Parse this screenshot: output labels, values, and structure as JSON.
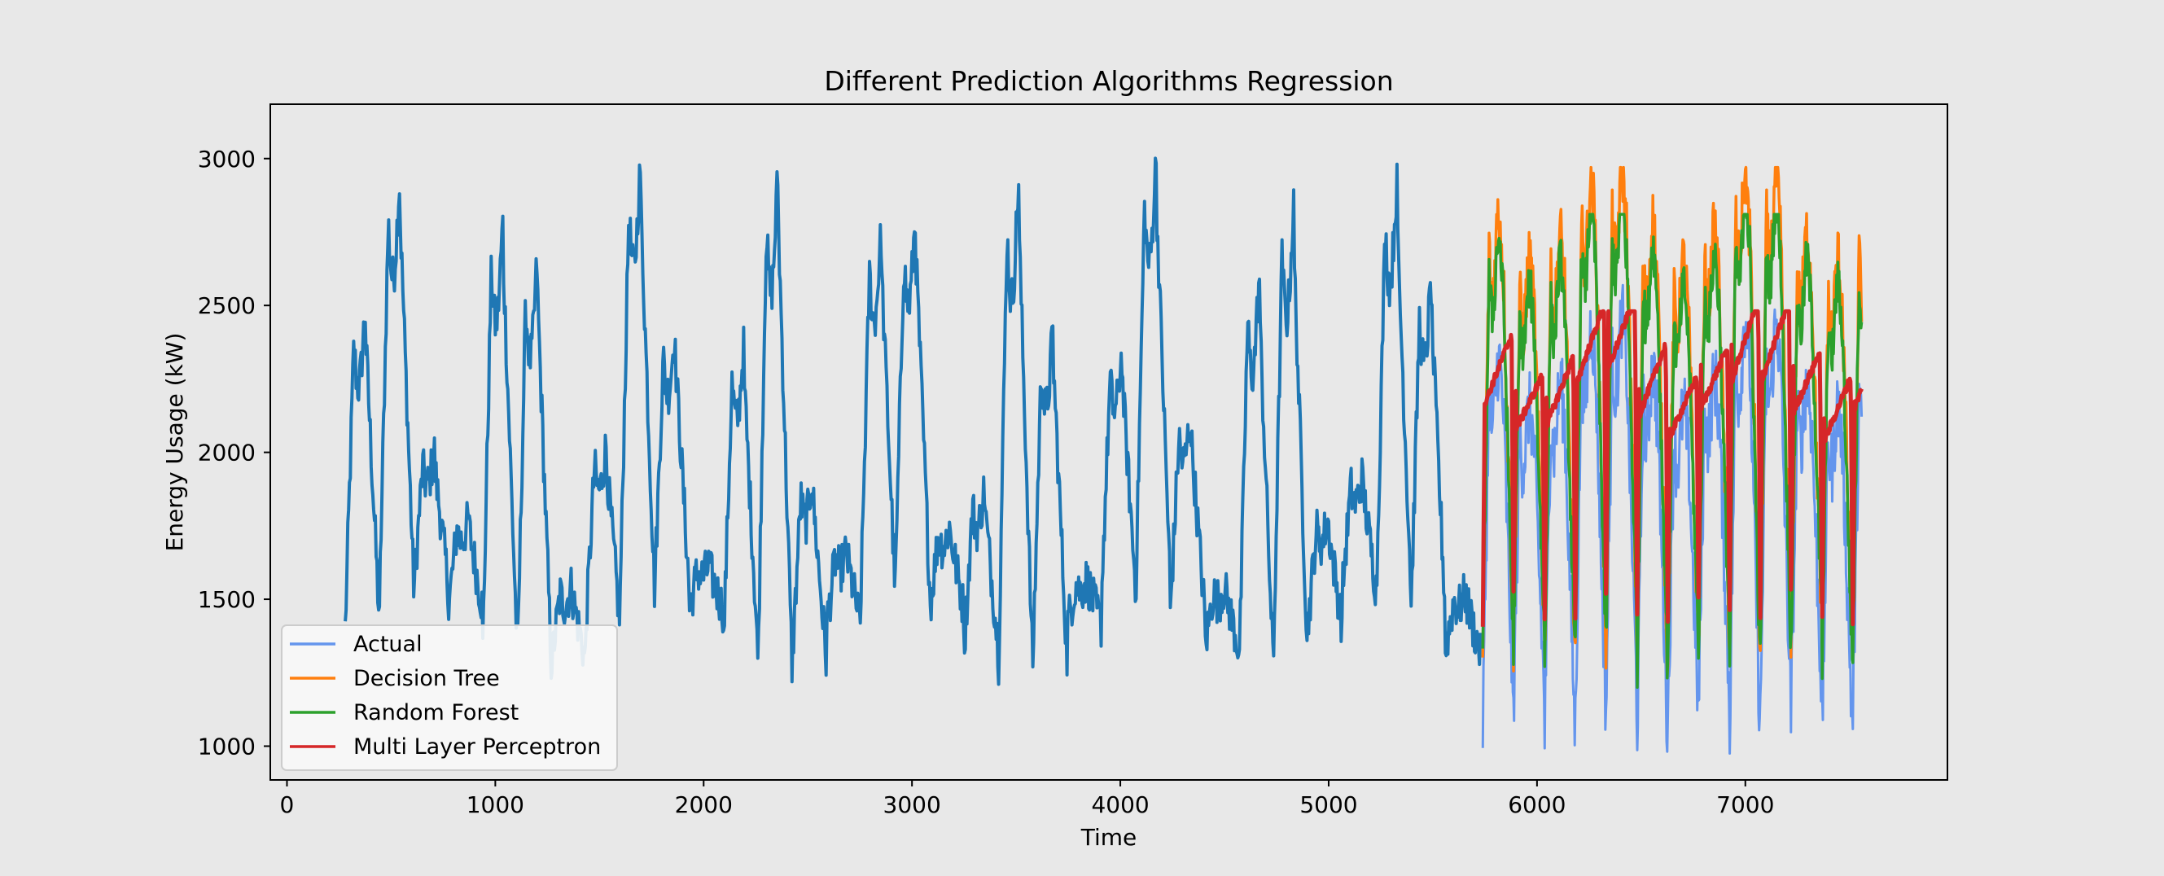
{
  "chart_data": {
    "type": "line",
    "title": "Different Prediction Algorithms Regression",
    "xlabel": "Time",
    "ylabel": "Energy Usage (kW)",
    "xlim": [
      -80,
      7970
    ],
    "ylim": [
      885,
      3185
    ],
    "xticks": [
      0,
      1000,
      2000,
      3000,
      4000,
      5000,
      6000,
      7000
    ],
    "yticks": [
      1000,
      1500,
      2000,
      2500,
      3000
    ],
    "grid": false,
    "legend_position": "lower-left",
    "history_series": {
      "name": "",
      "color": "#1f77b4",
      "x_start": 280,
      "x_end": 5730,
      "y_min": 1150,
      "y_max": 3070,
      "approx_period": 165
    },
    "series": [
      {
        "name": "Actual",
        "color": "#6495ed",
        "x_start": 5740,
        "x_end": 7560,
        "y_min": 975,
        "y_max": 2640
      },
      {
        "name": "Decision Tree",
        "color": "#ff7f0e",
        "x_start": 5740,
        "x_end": 7560,
        "y_min": 1230,
        "y_max": 2970
      },
      {
        "name": "Random Forest",
        "color": "#2ca02c",
        "x_start": 5740,
        "x_end": 7560,
        "y_min": 1200,
        "y_max": 2810
      },
      {
        "name": "Multi Layer Perceptron",
        "color": "#d62728",
        "x_start": 5740,
        "x_end": 7560,
        "y_min": 1310,
        "y_max": 2480
      }
    ]
  }
}
